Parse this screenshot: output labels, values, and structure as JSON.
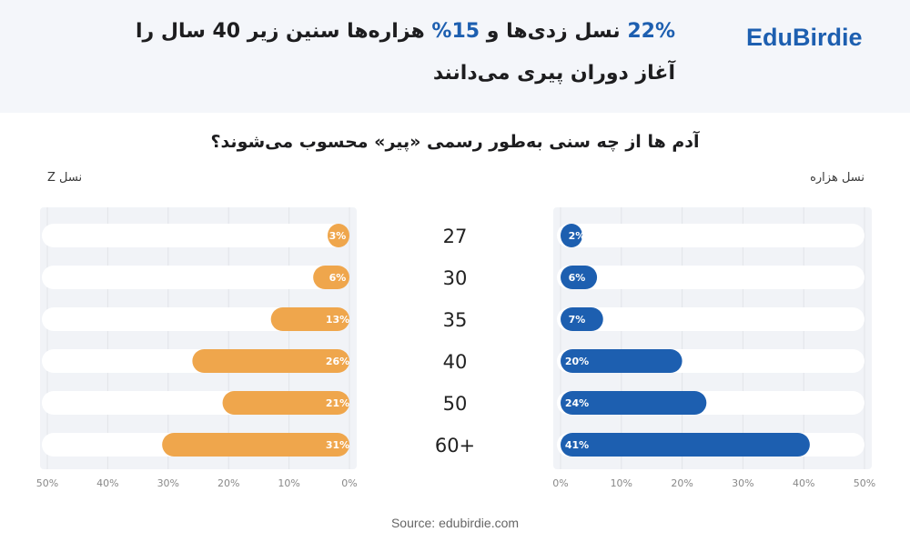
{
  "brand": "EduBirdie",
  "headline": {
    "stat1": "22%",
    "part1": " نسل زدی‌ها و ",
    "stat2": "15%",
    "part2": " هزاره‌ها سنین زیر 40 سال را",
    "line2": "آغاز دوران پیری می‌دانند"
  },
  "colors": {
    "gen_z": "#efa64c",
    "millennials": "#1d5fb0",
    "track": "#ffffff",
    "grid": "#e2e4e9",
    "panel": "#f1f3f7"
  },
  "chart_data": {
    "type": "bar",
    "title": "آدم ها از چه سنی به‌طور رسمی «پیر» محسوب می‌شوند؟",
    "categories": [
      "27",
      "30",
      "35",
      "40",
      "50",
      "60+"
    ],
    "series": [
      {
        "name": "نسل Z",
        "values": [
          3,
          6,
          13,
          26,
          21,
          31
        ]
      },
      {
        "name": "نسل هزاره",
        "values": [
          2,
          6,
          7,
          20,
          24,
          41
        ]
      }
    ],
    "xlim": [
      0,
      50
    ],
    "ticks": [
      "0%",
      "10%",
      "20%",
      "30%",
      "40%",
      "50%"
    ],
    "grid": true
  },
  "source": "Source: edubirdie.com"
}
